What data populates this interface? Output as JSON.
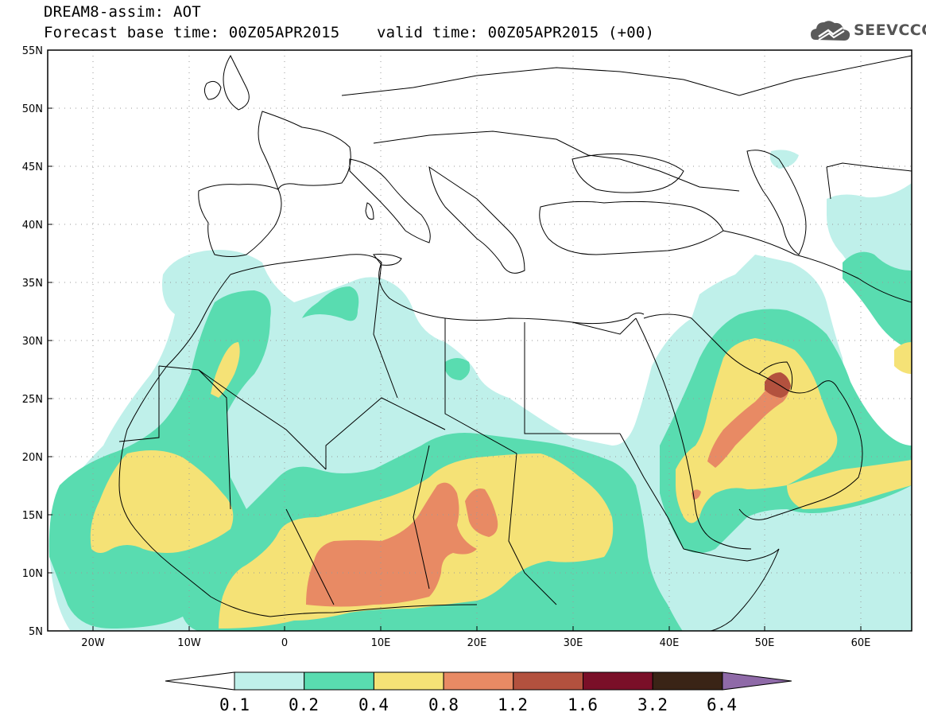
{
  "header": {
    "line1": "DREAM8-assim: AOT",
    "line2": "Forecast base time: 00Z05APR2015    valid time: 00Z05APR2015 (+00)"
  },
  "logo": {
    "text": "SEEVCCC",
    "icon": "cloud-logo-icon"
  },
  "map": {
    "lat_range": [
      5,
      55
    ],
    "lon_range": [
      -25,
      65
    ],
    "lat_labels": [
      "55N",
      "50N",
      "45N",
      "40N",
      "35N",
      "30N",
      "25N",
      "20N",
      "15N",
      "10N",
      "5N"
    ],
    "lon_labels": [
      "20W",
      "10W",
      "0",
      "10E",
      "20E",
      "30E",
      "40E",
      "50E",
      "60E"
    ],
    "grid": "dotted"
  },
  "legend": {
    "labels": [
      "0.1",
      "0.2",
      "0.4",
      "0.8",
      "1.2",
      "1.6",
      "3.2",
      "6.4"
    ],
    "colors": [
      "#ffffff",
      "#bff0ea",
      "#59dcb0",
      "#f5e276",
      "#e88a64",
      "#b3513e",
      "#7a0f28",
      "#3a2416",
      "#8f6aa8"
    ]
  },
  "chart_data": {
    "type": "heatmap",
    "variable": "AOT",
    "levels": [
      0.1,
      0.2,
      0.4,
      0.8,
      1.2,
      1.6,
      3.2,
      6.4
    ]
  }
}
